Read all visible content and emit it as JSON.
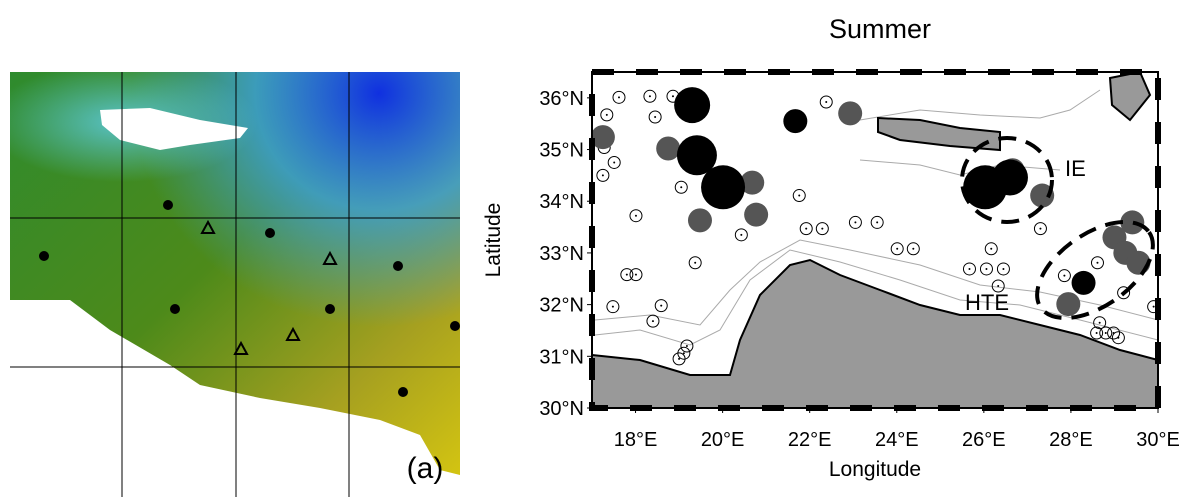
{
  "panel_a": {
    "label": "(a)"
  },
  "chart_data": {
    "type": "scatter",
    "title": "Summer",
    "x_label": "Longitude",
    "y_label": "Latitude",
    "annotations": [
      "IE",
      "HTE"
    ],
    "xlim": [
      17,
      30
    ],
    "ylim": [
      30,
      36.5
    ],
    "xticks": [
      {
        "value": 18,
        "label": "18°E"
      },
      {
        "value": 20,
        "label": "20°E"
      },
      {
        "value": 22,
        "label": "22°E"
      },
      {
        "value": 24,
        "label": "24°E"
      },
      {
        "value": 26,
        "label": "26°E"
      },
      {
        "value": 28,
        "label": "28°E"
      },
      {
        "value": 30,
        "label": "30°E"
      }
    ],
    "yticks": [
      {
        "value": 30,
        "label": "30°N"
      },
      {
        "value": 31,
        "label": "31°N"
      },
      {
        "value": 32,
        "label": "32°N"
      },
      {
        "value": 33,
        "label": "33°N"
      },
      {
        "value": 34,
        "label": "34°N"
      },
      {
        "value": 35,
        "label": "35°N"
      },
      {
        "value": 36,
        "label": "36°N"
      }
    ],
    "series": [
      {
        "color": "#000000",
        "filled": false,
        "x": [
          17.34,
          17.62,
          18.33,
          18.86,
          18.45,
          17.28,
          17.51,
          17.25,
          19.05,
          18.01,
          20.43,
          21.76,
          23.05,
          23.55,
          21.92,
          22.29,
          24.01,
          24.38,
          22.38,
          19.37,
          17.8,
          18.01,
          17.48,
          18.59,
          18.4,
          19.18,
          19.11,
          19.0,
          26.17,
          25.67,
          26.06,
          26.45,
          26.33,
          27.85,
          28.61,
          29.21,
          28.66,
          28.8,
          28.59,
          28.98,
          29.09,
          29.9,
          27.3
        ],
        "y": [
          35.67,
          36.01,
          36.03,
          36.03,
          35.63,
          35.04,
          34.75,
          34.5,
          34.27,
          33.72,
          33.35,
          34.11,
          33.59,
          33.59,
          33.47,
          33.47,
          33.08,
          33.08,
          35.92,
          32.81,
          32.58,
          32.58,
          31.96,
          31.98,
          31.68,
          31.2,
          31.06,
          30.95,
          33.08,
          32.69,
          32.69,
          32.69,
          32.36,
          32.56,
          32.81,
          32.23,
          31.65,
          31.45,
          31.45,
          31.45,
          31.36,
          31.96,
          33.47
        ]
      },
      {
        "color": "#555555",
        "filled": true,
        "x": [
          17.25,
          18.75,
          19.48,
          20.68,
          20.77,
          22.93,
          26.66,
          27.34,
          27.94,
          29.0,
          29.41,
          29.25,
          29.55
        ],
        "y": [
          35.24,
          35.02,
          33.63,
          34.36,
          33.74,
          35.7,
          34.6,
          34.11,
          32.01,
          33.3,
          33.59,
          33.0,
          32.81
        ]
      },
      {
        "color": "#000000",
        "filled": true,
        "x": [
          19.3,
          19.41,
          20.01,
          21.67,
          26.03,
          26.6,
          28.29
        ],
        "y": [
          35.86,
          34.89,
          34.27,
          35.55,
          34.27,
          34.46,
          32.42
        ],
        "sizes": [
          18,
          20,
          22,
          12,
          22,
          18,
          12
        ]
      }
    ]
  }
}
